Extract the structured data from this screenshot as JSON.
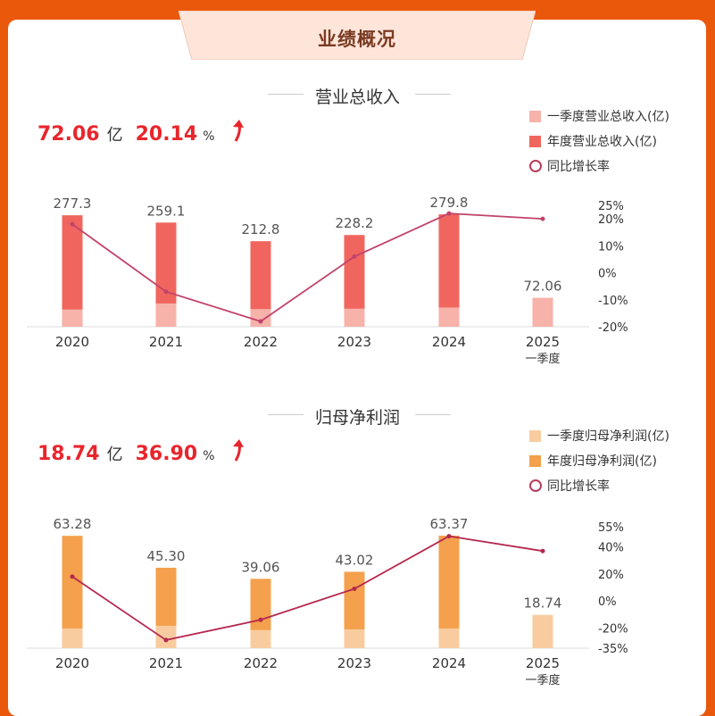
{
  "header": {
    "title": "业绩概况"
  },
  "revenue": {
    "section_title": "营业总收入",
    "value": "72.06",
    "value_unit": "亿",
    "growth": "20.14",
    "growth_unit": "%",
    "legend": [
      "一季度营业总收入(亿)",
      "年度营业总收入(亿)",
      "同比增长率"
    ]
  },
  "profit": {
    "section_title": "归母净利润",
    "value": "18.74",
    "value_unit": "亿",
    "growth": "36.90",
    "growth_unit": "%",
    "legend": [
      "一季度归母净利润(亿)",
      "年度归母净利润(亿)",
      "同比增长率"
    ]
  },
  "colors": {
    "revenue_annual": "#f0665e",
    "revenue_q1": "#f7b2aa",
    "profit_annual": "#f4a04c",
    "profit_q1": "#f9cc9f",
    "growth_line_revenue": "#c2426a",
    "growth_line_profit": "#b5284f",
    "accent_red": "#e8262d"
  },
  "chart_data": [
    {
      "type": "bar",
      "categories": [
        "2020",
        "2021",
        "2022",
        "2023",
        "2024",
        "2025"
      ],
      "category_sublabels": [
        "",
        "",
        "",
        "",
        "",
        "一季度"
      ],
      "series": [
        {
          "name": "一季度营业总收入(亿)",
          "values": [
            43,
            58,
            44,
            45,
            48,
            72.06
          ]
        },
        {
          "name": "年度营业总收入(亿)",
          "values": [
            277.3,
            259.1,
            212.8,
            228.2,
            279.8,
            null
          ]
        },
        {
          "name": "同比增长率",
          "type": "line",
          "values": [
            18,
            -7,
            -18,
            6,
            22,
            20
          ]
        }
      ],
      "bar_labels": [
        "277.3",
        "259.1",
        "212.8",
        "228.2",
        "279.8",
        "72.06"
      ],
      "y2_ticks": [
        "25%",
        "20%",
        "10%",
        "0%",
        "-10%",
        "-20%"
      ],
      "y2_tick_values": [
        25,
        20,
        10,
        0,
        -10,
        -20
      ],
      "y2lim": [
        -20,
        25
      ]
    },
    {
      "type": "bar",
      "categories": [
        "2020",
        "2021",
        "2022",
        "2023",
        "2024",
        "2025"
      ],
      "category_sublabels": [
        "",
        "",
        "",
        "",
        "",
        "一季度"
      ],
      "series": [
        {
          "name": "一季度归母净利润(亿)",
          "values": [
            11.1,
            12.6,
            10.2,
            10.6,
            11.1,
            18.74
          ]
        },
        {
          "name": "年度归母净利润(亿)",
          "values": [
            63.28,
            45.3,
            39.06,
            43.02,
            63.37,
            null
          ]
        },
        {
          "name": "同比增长率",
          "type": "line",
          "values": [
            18,
            -29,
            -14,
            9,
            48,
            37
          ]
        }
      ],
      "bar_labels": [
        "63.28",
        "45.30",
        "39.06",
        "43.02",
        "63.37",
        "18.74"
      ],
      "y2_ticks": [
        "55%",
        "40%",
        "20%",
        "0%",
        "-20%",
        "-35%"
      ],
      "y2_tick_values": [
        55,
        40,
        20,
        0,
        -20,
        -35
      ],
      "y2lim": [
        -35,
        55
      ]
    }
  ]
}
